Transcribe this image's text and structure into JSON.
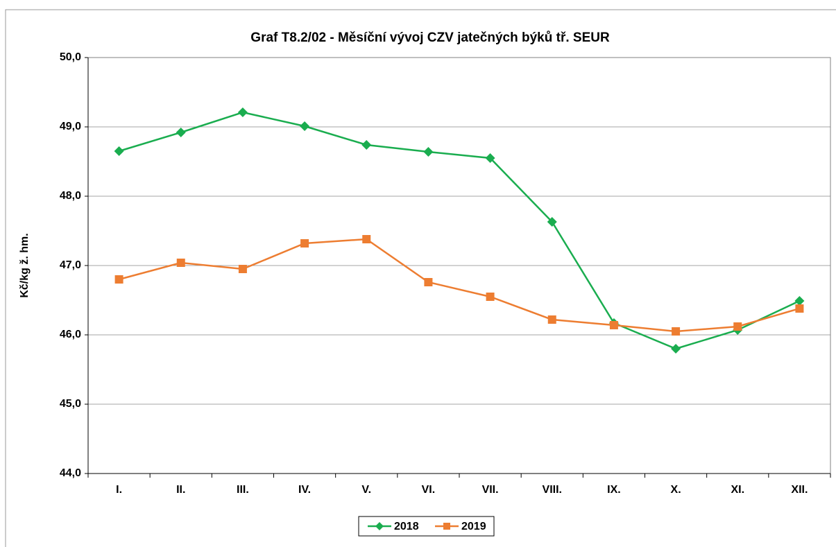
{
  "chart_data": {
    "type": "line",
    "title": "Graf T8.2/02 - Měsíční vývoj CZV jatečných býků tř. SEUR",
    "y_label": "Kč/kg ž. hm.",
    "categories": [
      "I.",
      "II.",
      "III.",
      "IV.",
      "V.",
      "VI.",
      "VII.",
      "VIII.",
      "IX.",
      "X.",
      "XI.",
      "XII."
    ],
    "series": [
      {
        "name": "2018",
        "color": "#1aad4f",
        "marker": "diamond",
        "values": [
          48.65,
          48.92,
          49.21,
          49.01,
          48.74,
          48.64,
          48.55,
          47.63,
          46.17,
          45.8,
          46.07,
          46.49
        ]
      },
      {
        "name": "2019",
        "color": "#ed7d31",
        "marker": "square",
        "values": [
          46.8,
          47.04,
          46.95,
          47.32,
          47.38,
          46.76,
          46.55,
          46.22,
          46.14,
          46.05,
          46.12,
          46.38
        ]
      }
    ],
    "ylim": [
      44,
      50
    ],
    "yticks": [
      {
        "value": 44,
        "label": "44,0"
      },
      {
        "value": 45,
        "label": "45,0"
      },
      {
        "value": 46,
        "label": "46,0"
      },
      {
        "value": 47,
        "label": "47,0"
      },
      {
        "value": 48,
        "label": "48,0"
      },
      {
        "value": 49,
        "label": "49,0"
      },
      {
        "value": 50,
        "label": "50,0"
      }
    ],
    "grid": true,
    "legend": "bottom"
  }
}
